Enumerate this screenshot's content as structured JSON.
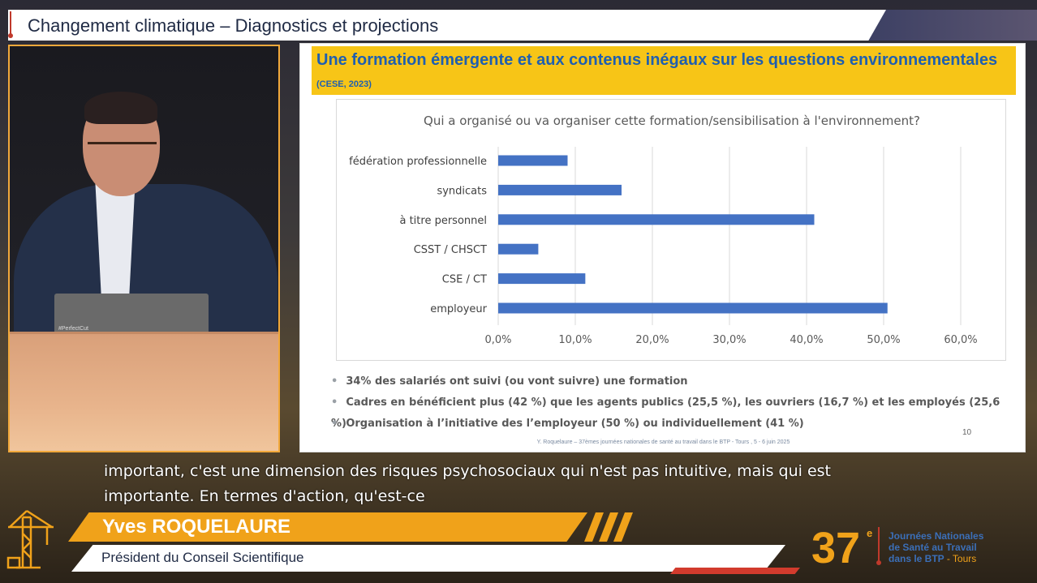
{
  "header": {
    "title": "Changement climatique – Diagnostics et projections"
  },
  "slide": {
    "title_main": "Une formation émergente et aux contenus inégaux sur les questions environnementales",
    "title_cite": "(CESE, 2023)",
    "bullets": [
      "34% des salariés ont suivi (ou vont suivre) une formation",
      "Cadres en bénéficient plus (42 %) que les agents publics (25,5 %), les ouvriers (16,7 %) et les employés (25,6 %)",
      "Organisation à l’initiative des l’employeur (50 %) ou individuellement (41 %)"
    ],
    "footer": "Y. Roquelaure – 37èmes journées nationales de santé au travail dans le BTP - Tours , 5 - 6 juin 2025",
    "page_number": "10"
  },
  "chart_data": {
    "type": "bar",
    "orientation": "horizontal",
    "title": "Qui a organisé ou va organiser cette formation/sensibilisation à l'environnement?",
    "categories": [
      "fédération professionnelle",
      "syndicats",
      "à titre personnel",
      "CSST / CHSCT",
      "CSE / CT",
      "employeur"
    ],
    "values": [
      9.0,
      16.0,
      41.0,
      5.2,
      11.3,
      50.5
    ],
    "xlim": [
      0,
      60
    ],
    "xticks": [
      "0,0%",
      "10,0%",
      "20,0%",
      "30,0%",
      "40,0%",
      "50,0%",
      "60,0%"
    ],
    "grid": true,
    "bar_color": "#4472c4"
  },
  "caption": {
    "line1": "important, c'est une dimension des risques psychosociaux qui n'est pas intuitive, mais qui est",
    "line2": "importante. En termes d'action, qu'est-ce"
  },
  "lower_third": {
    "name": "Yves ROQUELAURE",
    "role": "Président du Conseil Scientifique"
  },
  "event": {
    "number": "37",
    "sup": "e",
    "line1": "Journées Nationales",
    "line2": "de Santé au Travail",
    "line3": "dans le BTP",
    "city": "- Tours"
  },
  "video": {
    "laptop_logo": "#PerfectCut"
  },
  "colors": {
    "accent_orange": "#f0a21a",
    "slide_yellow": "#f7c517",
    "title_blue": "#1f5fb0"
  }
}
